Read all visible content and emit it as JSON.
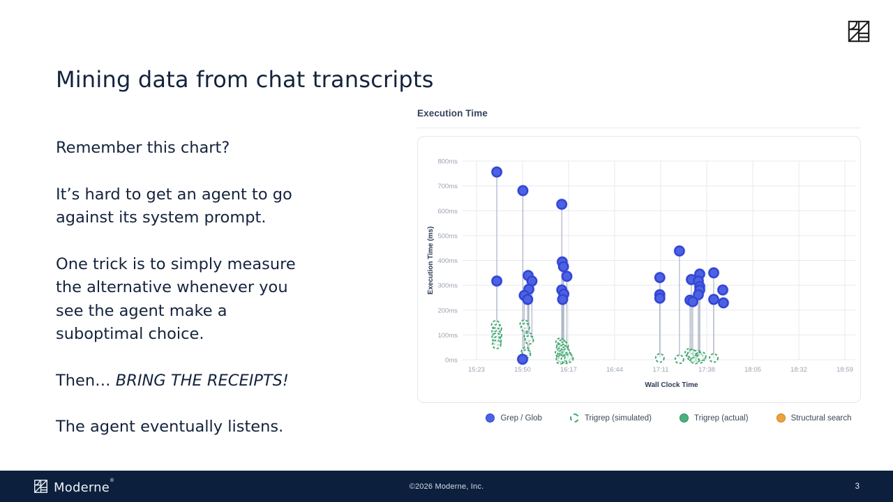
{
  "slide": {
    "title": "Mining data from chat transcripts",
    "page_number": "3",
    "footer_copyright": "©2026 Moderne, Inc.",
    "footer_brand": "Moderne",
    "footer_brand_mark": "®"
  },
  "body": {
    "p1": "Remember this chart?",
    "p2": "It’s hard to get an agent to go\nagainst its system prompt.",
    "p3": "One trick is to simply measure\nthe alternative whenever you\nsee the agent make a\nsuboptimal choice.",
    "p4_prefix": "Then… ",
    "p4_italic": "BRING THE RECEIPTS!",
    "p5": "The agent eventually listens."
  },
  "chart": {
    "header": "Execution Time"
  },
  "chart_data": {
    "type": "scatter",
    "title": "Execution Time",
    "xlabel": "Wall Clock Time",
    "ylabel": "Execution Time (ms)",
    "x_ticks": [
      "15:23",
      "15:50",
      "16:17",
      "16:44",
      "17:11",
      "17:38",
      "18:05",
      "18:32",
      "18:59"
    ],
    "y_ticks": [
      "0ms",
      "100ms",
      "200ms",
      "300ms",
      "400ms",
      "500ms",
      "600ms",
      "700ms",
      "800ms"
    ],
    "ylim": [
      0,
      800
    ],
    "x_tick_interval_minutes": 27,
    "grid": true,
    "legend_position": "bottom",
    "colors": {
      "grep_fill": "#4d61e3",
      "grep_stroke": "#3143d3",
      "sim_stroke": "#45a873",
      "actual_fill": "#4caf7d",
      "actual_stroke": "#2f9160",
      "structural_fill": "#eda33b",
      "structural_stroke": "#c8801f",
      "stem": "#b0b8ca",
      "grid": "#e7e9ee"
    },
    "legend": [
      {
        "label": "Grep / Glob",
        "marker": "solid",
        "color": "#4d61e3",
        "border": "#3143d3"
      },
      {
        "label": "Trigrep (simulated)",
        "marker": "dashed",
        "color": "#45a873",
        "border": "#45a873"
      },
      {
        "label": "Trigrep (actual)",
        "marker": "solid",
        "color": "#4caf7d",
        "border": "#2f9160"
      },
      {
        "label": "Structural search",
        "marker": "solid",
        "color": "#eda33b",
        "border": "#c8801f"
      }
    ],
    "series": [
      {
        "name": "Grep / Glob",
        "style": "solid-blue",
        "points": [
          {
            "t": 11.9,
            "y": 756,
            "s": 62
          },
          {
            "t": 11.9,
            "y": 317,
            "s": 62
          },
          {
            "t": 27.2,
            "y": 681,
            "s": 28
          },
          {
            "t": 30.3,
            "y": 339,
            "s": 84
          },
          {
            "t": 32.5,
            "y": 317,
            "s": 84
          },
          {
            "t": 30.7,
            "y": 284,
            "s": 28
          },
          {
            "t": 28.0,
            "y": 259,
            "s": 28
          },
          {
            "t": 30.0,
            "y": 243,
            "s": 28
          },
          {
            "t": 27.0,
            "y": 2
          },
          {
            "t": 50.0,
            "y": 626,
            "s": 6
          },
          {
            "t": 50.3,
            "y": 394,
            "s": 6
          },
          {
            "t": 51.0,
            "y": 375,
            "s": 6
          },
          {
            "t": 53.0,
            "y": 336,
            "s": 6
          },
          {
            "t": 50.0,
            "y": 281,
            "s": 6
          },
          {
            "t": 51.2,
            "y": 265,
            "s": 6
          },
          {
            "t": 50.5,
            "y": 243,
            "s": 6
          },
          {
            "t": 107.5,
            "y": 331,
            "s": 8
          },
          {
            "t": 107.5,
            "y": 262,
            "s": 8
          },
          {
            "t": 107.5,
            "y": 248,
            "s": 8
          },
          {
            "t": 119.0,
            "y": 438,
            "s": 4
          },
          {
            "t": 126.0,
            "y": 323,
            "s": 6
          },
          {
            "t": 130.9,
            "y": 345,
            "s": 6
          },
          {
            "t": 130.1,
            "y": 317,
            "s": 6
          },
          {
            "t": 130.9,
            "y": 295,
            "s": 6
          },
          {
            "t": 130.9,
            "y": 281,
            "s": 6
          },
          {
            "t": 130.1,
            "y": 262,
            "s": 6
          },
          {
            "t": 125.2,
            "y": 240,
            "s": 6
          },
          {
            "t": 126.8,
            "y": 234,
            "s": 6
          },
          {
            "t": 139.1,
            "y": 350,
            "s": 6
          },
          {
            "t": 139.1,
            "y": 243,
            "s": 6
          },
          {
            "t": 144.4,
            "y": 281
          },
          {
            "t": 144.8,
            "y": 229
          }
        ]
      },
      {
        "name": "Trigrep (simulated)",
        "style": "dashed-green",
        "points": [
          {
            "t": 11.3,
            "y": 140
          },
          {
            "t": 12.2,
            "y": 126
          },
          {
            "t": 11.5,
            "y": 112
          },
          {
            "t": 12.3,
            "y": 100
          },
          {
            "t": 11.6,
            "y": 90
          },
          {
            "t": 12.0,
            "y": 76
          },
          {
            "t": 11.8,
            "y": 62
          },
          {
            "t": 28.0,
            "y": 143
          },
          {
            "t": 28.6,
            "y": 130
          },
          {
            "t": 30.4,
            "y": 92
          },
          {
            "t": 30.9,
            "y": 80
          },
          {
            "t": 28.8,
            "y": 33
          },
          {
            "t": 29.2,
            "y": 24
          },
          {
            "t": 49.0,
            "y": 70
          },
          {
            "t": 50.2,
            "y": 63
          },
          {
            "t": 51.3,
            "y": 56
          },
          {
            "t": 49.4,
            "y": 48
          },
          {
            "t": 50.8,
            "y": 42
          },
          {
            "t": 52.0,
            "y": 35
          },
          {
            "t": 48.7,
            "y": 28
          },
          {
            "t": 50.0,
            "y": 21
          },
          {
            "t": 51.5,
            "y": 15
          },
          {
            "t": 49.6,
            "y": 9
          },
          {
            "t": 52.6,
            "y": 27
          },
          {
            "t": 53.6,
            "y": 12
          },
          {
            "t": 50.6,
            "y": 4
          },
          {
            "t": 49.2,
            "y": 0
          },
          {
            "t": 52.2,
            "y": 2
          },
          {
            "t": 54.2,
            "y": 6
          },
          {
            "t": 107.5,
            "y": 7
          },
          {
            "t": 119.0,
            "y": 2
          },
          {
            "t": 124.8,
            "y": 28
          },
          {
            "t": 125.8,
            "y": 16
          },
          {
            "t": 127.0,
            "y": 9
          },
          {
            "t": 129.3,
            "y": 21
          },
          {
            "t": 130.3,
            "y": 11
          },
          {
            "t": 131.2,
            "y": 4
          },
          {
            "t": 128.2,
            "y": 1
          },
          {
            "t": 132.0,
            "y": 14
          },
          {
            "t": 126.3,
            "y": 24
          },
          {
            "t": 139.1,
            "y": 7
          }
        ]
      },
      {
        "name": "Trigrep (actual)",
        "style": "solid-green",
        "points": []
      },
      {
        "name": "Structural search",
        "style": "solid-orange",
        "points": []
      }
    ]
  }
}
